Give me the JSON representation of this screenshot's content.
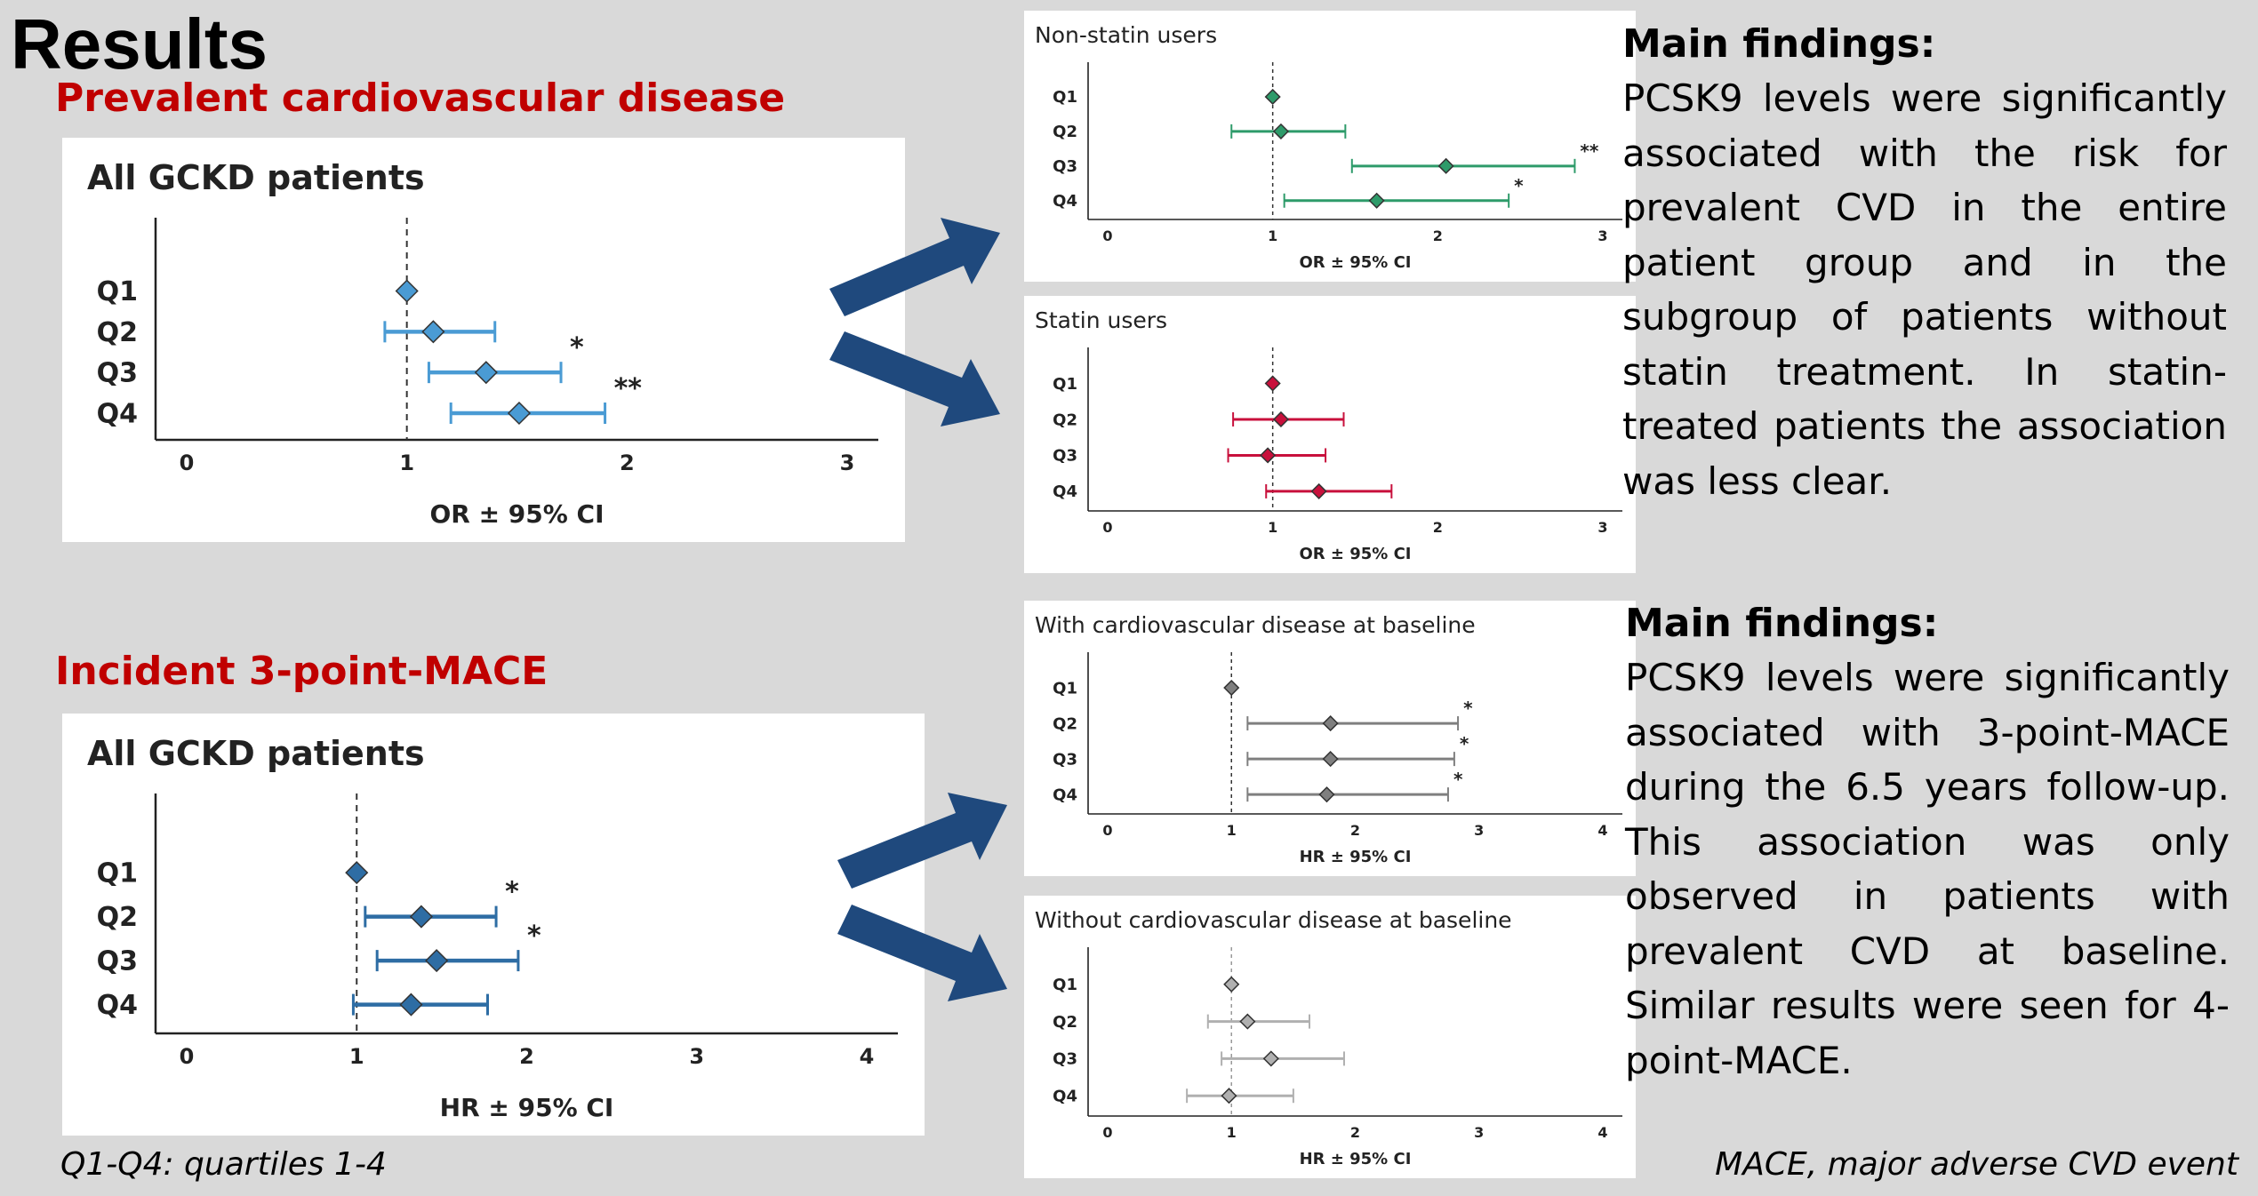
{
  "title": "Results",
  "sections": {
    "prevalent": "Prevalent cardiovascular disease",
    "incident": "Incident 3-point-MACE"
  },
  "findings": [
    {
      "heading": "Main findings:",
      "text": "PCSK9 levels were significantly associated with the risk for prevalent CVD in the entire patient group and in the subgroup of patients without statin treatment. In statin-treated patients the association was less clear."
    },
    {
      "heading": "Main findings:",
      "text": "PCSK9 levels were significantly associated with 3-point-MACE during the 6.5 years follow-up. This association was only observed in patients with prevalent CVD at baseline. Similar results were seen for 4-point-MACE."
    }
  ],
  "footnotes": {
    "left": "Q1-Q4: quartiles 1-4",
    "right": "MACE, major adverse CVD event"
  },
  "arrow_color": "#1f497d",
  "chart_data": [
    {
      "id": "all-or",
      "type": "scatter",
      "title": "All GCKD patients",
      "xlabel": "OR ± 95%  CI",
      "categories": [
        "Q1",
        "Q2",
        "Q3",
        "Q4"
      ],
      "xlim": [
        0,
        3
      ],
      "xticks": [
        "0",
        "1",
        "2",
        "3"
      ],
      "reference": 1,
      "color": "#4a9bd4",
      "series": [
        {
          "estimates": [
            1.0,
            1.12,
            1.36,
            1.51
          ],
          "lower": [
            1.0,
            0.9,
            1.1,
            1.2
          ],
          "upper": [
            1.0,
            1.4,
            1.7,
            1.9
          ],
          "significance": [
            "",
            "",
            "*",
            "**"
          ]
        }
      ]
    },
    {
      "id": "nonstatin-or",
      "type": "scatter",
      "title": "Non-statin users",
      "xlabel": "OR ± 95%  CI",
      "categories": [
        "Q1",
        "Q2",
        "Q3",
        "Q4"
      ],
      "xlim": [
        0,
        3
      ],
      "xticks": [
        "0",
        "1",
        "2",
        "3"
      ],
      "reference": 1,
      "color": "#2e9b6a",
      "series": [
        {
          "estimates": [
            1.0,
            1.05,
            2.05,
            1.63
          ],
          "lower": [
            1.0,
            0.75,
            1.48,
            1.07
          ],
          "upper": [
            1.0,
            1.44,
            2.83,
            2.43
          ],
          "significance": [
            "",
            "",
            "**",
            "*"
          ]
        }
      ]
    },
    {
      "id": "statin-or",
      "type": "scatter",
      "title": "Statin users",
      "xlabel": "OR ± 95%  CI",
      "categories": [
        "Q1",
        "Q2",
        "Q3",
        "Q4"
      ],
      "xlim": [
        0,
        3
      ],
      "xticks": [
        "0",
        "1",
        "2",
        "3"
      ],
      "reference": 1,
      "color": "#c8103c",
      "series": [
        {
          "estimates": [
            1.0,
            1.05,
            0.97,
            1.28
          ],
          "lower": [
            1.0,
            0.76,
            0.73,
            0.96
          ],
          "upper": [
            1.0,
            1.43,
            1.32,
            1.72
          ],
          "significance": [
            "",
            "",
            "",
            ""
          ]
        }
      ]
    },
    {
      "id": "all-hr",
      "type": "scatter",
      "title": "All GCKD patients",
      "xlabel": "HR ± 95%  CI",
      "categories": [
        "Q1",
        "Q2",
        "Q3",
        "Q4"
      ],
      "xlim": [
        0,
        4
      ],
      "xticks": [
        "0",
        "1",
        "2",
        "3",
        "4"
      ],
      "reference": 1,
      "color": "#2e6da4",
      "series": [
        {
          "estimates": [
            1.0,
            1.38,
            1.47,
            1.32
          ],
          "lower": [
            1.0,
            1.05,
            1.12,
            0.98
          ],
          "upper": [
            1.0,
            1.82,
            1.95,
            1.77
          ],
          "significance": [
            "",
            "*",
            "*",
            ""
          ]
        }
      ]
    },
    {
      "id": "withcvd-hr",
      "type": "scatter",
      "title": "With cardiovascular disease at baseline",
      "xlabel": "HR ± 95%  CI",
      "categories": [
        "Q1",
        "Q2",
        "Q3",
        "Q4"
      ],
      "xlim": [
        0,
        4
      ],
      "xticks": [
        "0",
        "1",
        "2",
        "3",
        "4"
      ],
      "reference": 1,
      "color": "#7f7f7f",
      "series": [
        {
          "estimates": [
            1.0,
            1.8,
            1.8,
            1.77
          ],
          "lower": [
            1.0,
            1.13,
            1.13,
            1.13
          ],
          "upper": [
            1.0,
            2.83,
            2.8,
            2.75
          ],
          "significance": [
            "",
            "*",
            "*",
            "*"
          ]
        }
      ]
    },
    {
      "id": "withoutcvd-hr",
      "type": "scatter",
      "title": "Without cardiovascular disease at baseline",
      "xlabel": "HR ± 95%  CI",
      "categories": [
        "Q1",
        "Q2",
        "Q3",
        "Q4"
      ],
      "xlim": [
        0,
        4
      ],
      "xticks": [
        "0",
        "1",
        "2",
        "3",
        "4"
      ],
      "reference": 1,
      "color": "#b0b0b0",
      "series": [
        {
          "estimates": [
            1.0,
            1.13,
            1.32,
            0.98
          ],
          "lower": [
            1.0,
            0.81,
            0.92,
            0.64
          ],
          "upper": [
            1.0,
            1.63,
            1.91,
            1.5
          ],
          "significance": [
            "",
            "",
            "",
            ""
          ]
        }
      ]
    }
  ]
}
